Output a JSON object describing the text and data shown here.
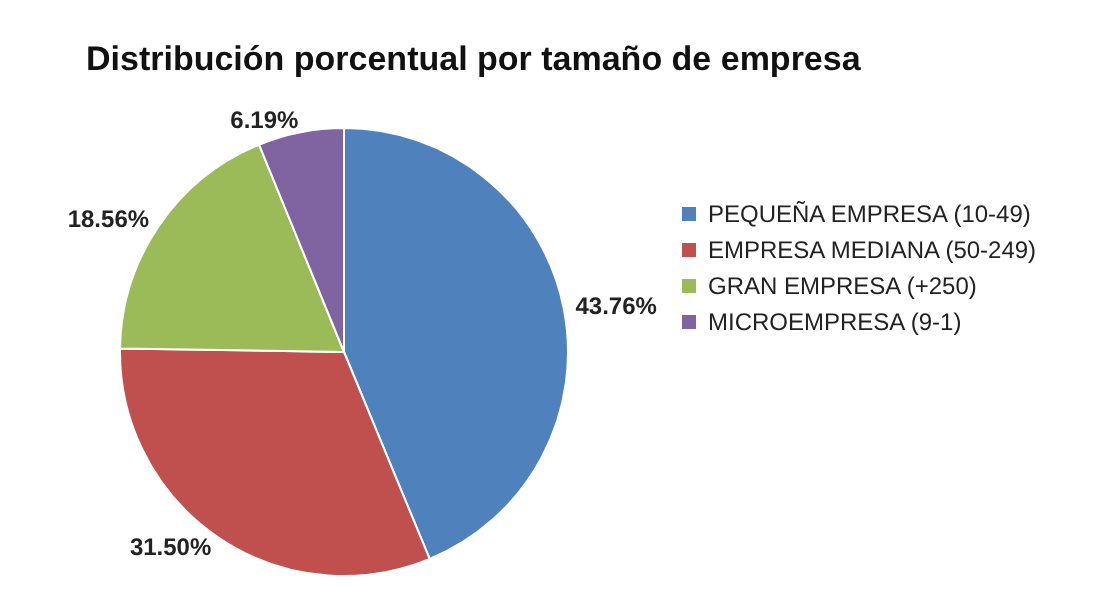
{
  "chart_data": {
    "type": "pie",
    "title": "Distribución porcentual por tamaño de empresa",
    "categories": [
      "PEQUEÑA EMPRESA (10-49)",
      "EMPRESA MEDIANA (50-249)",
      "GRAN EMPRESA (+250)",
      "MICROEMPRESA (9-1)"
    ],
    "values": [
      43.76,
      31.5,
      18.56,
      6.19
    ],
    "value_labels": [
      "43.76%",
      "31.50%",
      "18.56%",
      "6.19%"
    ],
    "colors": [
      "#4f81bd",
      "#c0504d",
      "#9bbb59",
      "#8064a2"
    ],
    "legend": "right"
  }
}
